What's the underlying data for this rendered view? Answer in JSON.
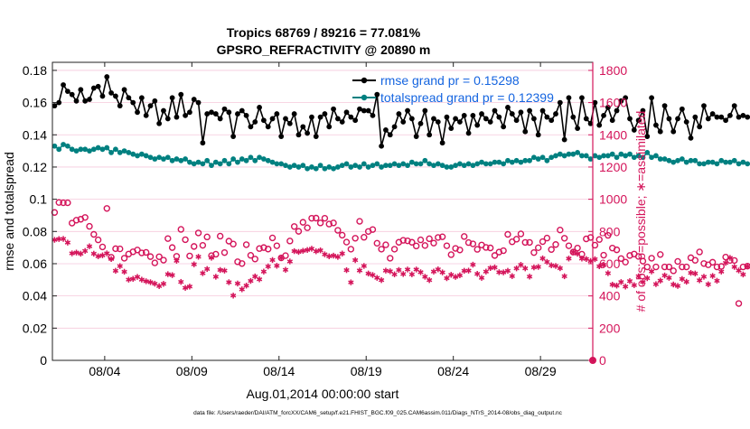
{
  "chart_data": {
    "type": "line",
    "title_line1": "Tropics 68769 / 89216 = 77.081%",
    "title_line2": "GPSRO_REFRACTIVITY @ 20890 m",
    "xlabel": "Aug.01,2014 00:00:00 start",
    "ylabel_left": "rmse and totalspread",
    "ylabel_right": "# of obs: o=possible; ∗=assimilated",
    "footer": "data file: /Users/raeder/DAI/ATM_forcXX/CAM6_setup/f.e21.FHIST_BGC.f09_025.CAM6assim.011/Diags_NTrS_2014-08/obs_diag_output.nc",
    "x_axis": {
      "unit": "days since Aug 1",
      "range": [
        0,
        31
      ],
      "ticks": [
        {
          "value": 3,
          "label": "08/04"
        },
        {
          "value": 8,
          "label": "08/09"
        },
        {
          "value": 13,
          "label": "08/14"
        },
        {
          "value": 18,
          "label": "08/19"
        },
        {
          "value": 23,
          "label": "08/24"
        },
        {
          "value": 28,
          "label": "08/29"
        }
      ]
    },
    "y_left": {
      "range": [
        0,
        0.185
      ],
      "ticks": [
        {
          "value": 0,
          "label": "0"
        },
        {
          "value": 0.02,
          "label": "0.02"
        },
        {
          "value": 0.04,
          "label": "0.04"
        },
        {
          "value": 0.06,
          "label": "0.06"
        },
        {
          "value": 0.08,
          "label": "0.08"
        },
        {
          "value": 0.1,
          "label": "0.1"
        },
        {
          "value": 0.12,
          "label": "0.12"
        },
        {
          "value": 0.14,
          "label": "0.14"
        },
        {
          "value": 0.16,
          "label": "0.16"
        },
        {
          "value": 0.18,
          "label": "0.18"
        }
      ]
    },
    "y_right": {
      "range": [
        0,
        1850
      ],
      "ticks": [
        {
          "value": 0,
          "label": "0"
        },
        {
          "value": 200,
          "label": "200"
        },
        {
          "value": 400,
          "label": "400"
        },
        {
          "value": 600,
          "label": "600"
        },
        {
          "value": 800,
          "label": "800"
        },
        {
          "value": 1000,
          "label": "1000"
        },
        {
          "value": 1200,
          "label": "1200"
        },
        {
          "value": 1400,
          "label": "1400"
        },
        {
          "value": 1600,
          "label": "1600"
        },
        {
          "value": 1800,
          "label": "1800"
        }
      ]
    },
    "legend": {
      "position": "top-right",
      "entries": [
        "rmse grand pr = 0.15298",
        "totalspread grand pr = 0.12399"
      ]
    },
    "colors": {
      "rmse": "#000000",
      "totalspread": "#008080",
      "obs": "#d4145a",
      "legend_text": "#1565e0",
      "grid": "#f5c8dc"
    },
    "series": [
      {
        "name": "rmse",
        "axis": "left",
        "start_day": 0.125,
        "step_days": 0.25,
        "values": [
          0.158,
          0.16,
          0.171,
          0.167,
          0.165,
          0.161,
          0.168,
          0.161,
          0.162,
          0.169,
          0.17,
          0.164,
          0.176,
          0.166,
          0.164,
          0.158,
          0.168,
          0.163,
          0.16,
          0.154,
          0.163,
          0.152,
          0.158,
          0.161,
          0.147,
          0.155,
          0.15,
          0.163,
          0.151,
          0.165,
          0.152,
          0.154,
          0.162,
          0.16,
          0.135,
          0.153,
          0.154,
          0.153,
          0.15,
          0.156,
          0.154,
          0.139,
          0.153,
          0.155,
          0.152,
          0.145,
          0.148,
          0.157,
          0.149,
          0.145,
          0.15,
          0.153,
          0.139,
          0.15,
          0.147,
          0.153,
          0.14,
          0.145,
          0.141,
          0.151,
          0.139,
          0.151,
          0.153,
          0.145,
          0.156,
          0.15,
          0.148,
          0.154,
          0.151,
          0.149,
          0.156,
          0.155,
          0.155,
          0.152,
          0.165,
          0.133,
          0.143,
          0.14,
          0.145,
          0.153,
          0.148,
          0.155,
          0.15,
          0.139,
          0.147,
          0.155,
          0.14,
          0.15,
          0.148,
          0.135,
          0.151,
          0.144,
          0.15,
          0.148,
          0.152,
          0.141,
          0.152,
          0.146,
          0.153,
          0.15,
          0.148,
          0.155,
          0.151,
          0.145,
          0.157,
          0.153,
          0.149,
          0.154,
          0.142,
          0.155,
          0.15,
          0.14,
          0.155,
          0.151,
          0.149,
          0.153,
          0.16,
          0.137,
          0.163,
          0.151,
          0.144,
          0.163,
          0.15,
          0.147,
          0.16,
          0.146,
          0.152,
          0.157,
          0.149,
          0.155,
          0.161,
          0.163,
          0.15,
          0.143,
          0.149,
          0.155,
          0.139,
          0.163,
          0.146,
          0.142,
          0.158,
          0.15,
          0.142,
          0.15,
          0.156,
          0.148,
          0.138,
          0.151,
          0.145,
          0.158,
          0.15,
          0.153,
          0.151,
          0.151,
          0.149,
          0.152,
          0.158,
          0.151,
          0.152,
          0.151
        ]
      },
      {
        "name": "totalspread",
        "axis": "left",
        "start_day": 0.125,
        "step_days": 0.25,
        "values": [
          0.133,
          0.131,
          0.134,
          0.133,
          0.131,
          0.13,
          0.131,
          0.131,
          0.13,
          0.131,
          0.132,
          0.131,
          0.132,
          0.129,
          0.131,
          0.129,
          0.13,
          0.129,
          0.128,
          0.127,
          0.128,
          0.127,
          0.126,
          0.125,
          0.126,
          0.125,
          0.126,
          0.124,
          0.125,
          0.124,
          0.125,
          0.123,
          0.122,
          0.123,
          0.122,
          0.124,
          0.121,
          0.123,
          0.122,
          0.124,
          0.122,
          0.125,
          0.123,
          0.125,
          0.124,
          0.126,
          0.124,
          0.126,
          0.125,
          0.124,
          0.123,
          0.122,
          0.122,
          0.121,
          0.12,
          0.121,
          0.12,
          0.121,
          0.119,
          0.12,
          0.119,
          0.121,
          0.119,
          0.12,
          0.119,
          0.12,
          0.121,
          0.122,
          0.12,
          0.121,
          0.12,
          0.122,
          0.12,
          0.121,
          0.122,
          0.12,
          0.121,
          0.121,
          0.122,
          0.121,
          0.122,
          0.121,
          0.123,
          0.122,
          0.122,
          0.124,
          0.122,
          0.121,
          0.122,
          0.121,
          0.12,
          0.12,
          0.121,
          0.122,
          0.121,
          0.122,
          0.121,
          0.122,
          0.123,
          0.122,
          0.122,
          0.123,
          0.123,
          0.122,
          0.124,
          0.123,
          0.124,
          0.123,
          0.124,
          0.124,
          0.126,
          0.125,
          0.126,
          0.124,
          0.126,
          0.127,
          0.128,
          0.127,
          0.128,
          0.128,
          0.129,
          0.127,
          0.127,
          0.125,
          0.127,
          0.126,
          0.127,
          0.127,
          0.128,
          0.126,
          0.128,
          0.127,
          0.128,
          0.126,
          0.127,
          0.126,
          0.129,
          0.126,
          0.127,
          0.125,
          0.125,
          0.124,
          0.123,
          0.124,
          0.125,
          0.123,
          0.124,
          0.124,
          0.122,
          0.122,
          0.123,
          0.123,
          0.122,
          0.124,
          0.123,
          0.123,
          0.124,
          0.122,
          0.123,
          0.122
        ]
      },
      {
        "name": "obs possible",
        "axis": "right",
        "start_day": 0.125,
        "step_days": 0.25,
        "values": [
          918,
          980,
          978,
          978,
          852,
          870,
          876,
          887,
          832,
          782,
          748,
          704,
          943,
          640,
          693,
          692,
          634,
          660,
          674,
          685,
          667,
          670,
          644,
          605,
          643,
          622,
          756,
          700,
          646,
          813,
          749,
          648,
          707,
          791,
          714,
          766,
          650,
          659,
          771,
          669,
          740,
          722,
          612,
          601,
          718,
          652,
          629,
          694,
          700,
          691,
          760,
          711,
          636,
          650,
          741,
          831,
          801,
          857,
          823,
          882,
          883,
          853,
          882,
          846,
          853,
          807,
          777,
          734,
          690,
          758,
          863,
          764,
          800,
          812,
          727,
          690,
          717,
          634,
          690,
          733,
          745,
          742,
          733,
          710,
          748,
          713,
          755,
          728,
          763,
          767,
          711,
          656,
          695,
          685,
          769,
          731,
          723,
          689,
          716,
          701,
          698,
          651,
          672,
          681,
          782,
          736,
          752,
          785,
          732,
          732,
          669,
          699,
          737,
          759,
          688,
          719,
          809,
          758,
          711,
          672,
          697,
          659,
          754,
          763,
          715,
          750,
          653,
          776,
          697,
          686,
          632,
          610,
          651,
          660,
          645,
          616,
          580,
          634,
          580,
          657,
          580,
          580,
          556,
          614,
          580,
          580,
          637,
          621,
          673,
          601,
          593,
          609,
          580,
          583,
          641,
          620,
          620,
          353,
          580,
          585
        ]
      },
      {
        "name": "obs assimilated",
        "axis": "right",
        "start_day": 0.125,
        "step_days": 0.25,
        "values": [
          748,
          753,
          754,
          731,
          664,
          669,
          662,
          679,
          708,
          662,
          646,
          652,
          664,
          629,
          556,
          585,
          550,
          501,
          506,
          518,
          501,
          491,
          485,
          476,
          461,
          475,
          535,
          529,
          618,
          487,
          450,
          458,
          596,
          643,
          541,
          567,
          637,
          519,
          561,
          557,
          485,
          402,
          477,
          441,
          464,
          493,
          521,
          503,
          551,
          583,
          623,
          587,
          637,
          562,
          614,
          678,
          673,
          680,
          685,
          693,
          677,
          683,
          658,
          646,
          650,
          642,
          663,
          560,
          484,
          622,
          558,
          586,
          539,
          530,
          512,
          498,
          557,
          553,
          534,
          561,
          536,
          564,
          534,
          564,
          547,
          519,
          498,
          551,
          565,
          546,
          510,
          531,
          518,
          528,
          556,
          557,
          594,
          537,
          512,
          551,
          573,
          577,
          547,
          546,
          556,
          523,
          571,
          593,
          571,
          520,
          577,
          580,
          633,
          611,
          590,
          586,
          572,
          522,
          632,
          672,
          662,
          632,
          629,
          617,
          628,
          584,
          593,
          541,
          470,
          464,
          486,
          458,
          492,
          467,
          522,
          486,
          510,
          552,
          473,
          495,
          527,
          512,
          471,
          462,
          505,
          488,
          543,
          539,
          497,
          519,
          472,
          524,
          494,
          551,
          605,
          636,
          580,
          558,
          533,
          584
        ]
      }
    ]
  }
}
